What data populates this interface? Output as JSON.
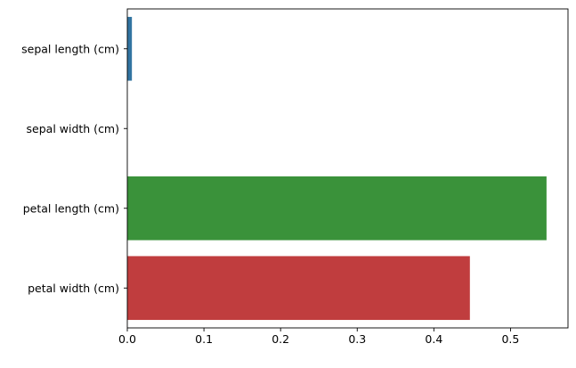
{
  "chart_data": {
    "type": "bar",
    "orientation": "horizontal",
    "title": "",
    "xlabel": "",
    "ylabel": "",
    "categories": [
      "sepal length (cm)",
      "sepal width (cm)",
      "petal length (cm)",
      "petal width (cm)"
    ],
    "values": [
      0.006,
      0.0,
      0.547,
      0.447
    ],
    "colors": [
      "#3274a1",
      "#e1812c",
      "#3a923a",
      "#c03d3e"
    ],
    "xlim": [
      0.0,
      0.575
    ],
    "xticks": [
      0.0,
      0.1,
      0.2,
      0.3,
      0.4,
      0.5
    ],
    "xtick_labels": [
      "0.0",
      "0.1",
      "0.2",
      "0.3",
      "0.4",
      "0.5"
    ],
    "grid": false,
    "legend": "none"
  }
}
